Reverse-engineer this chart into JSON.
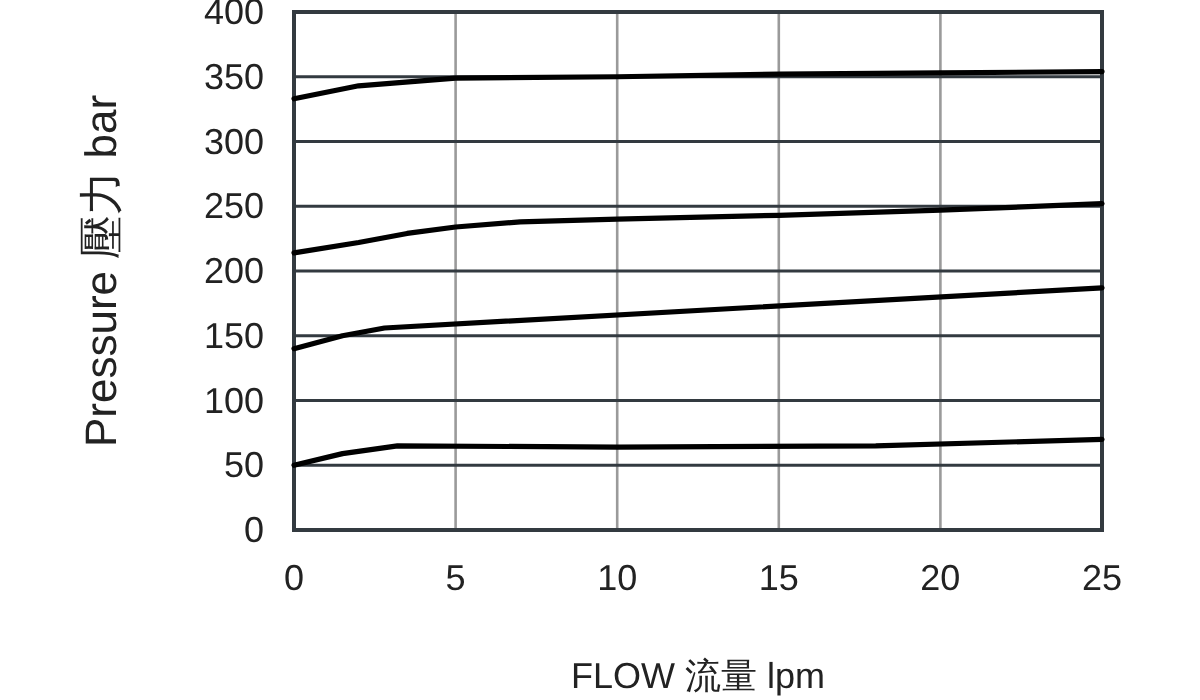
{
  "chart_data": {
    "type": "line",
    "xlabel": "FLOW 流量 lpm",
    "ylabel": "Pressure 壓力 bar",
    "xlim": [
      0,
      25
    ],
    "ylim": [
      0,
      400
    ],
    "xticks": [
      0,
      5,
      10,
      15,
      20,
      25
    ],
    "yticks": [
      0,
      50,
      100,
      150,
      200,
      250,
      300,
      350,
      400
    ],
    "grid": true,
    "series": [
      {
        "color": "#000000",
        "x": [
          0,
          2,
          5,
          10,
          15,
          20,
          25
        ],
        "values": [
          333,
          343,
          349,
          350,
          352,
          353,
          354
        ]
      },
      {
        "color": "#000000",
        "x": [
          0,
          2,
          3.5,
          5,
          7,
          10,
          15,
          20,
          25
        ],
        "values": [
          214,
          222,
          229,
          234,
          238,
          240,
          243,
          247,
          252
        ]
      },
      {
        "color": "#000000",
        "x": [
          0,
          1.5,
          2.8,
          25
        ],
        "values": [
          140,
          150,
          156,
          187
        ]
      },
      {
        "color": "#000000",
        "x": [
          0,
          1.5,
          3.2,
          10,
          18,
          25
        ],
        "values": [
          50,
          59,
          65,
          64,
          65,
          70
        ]
      }
    ]
  }
}
